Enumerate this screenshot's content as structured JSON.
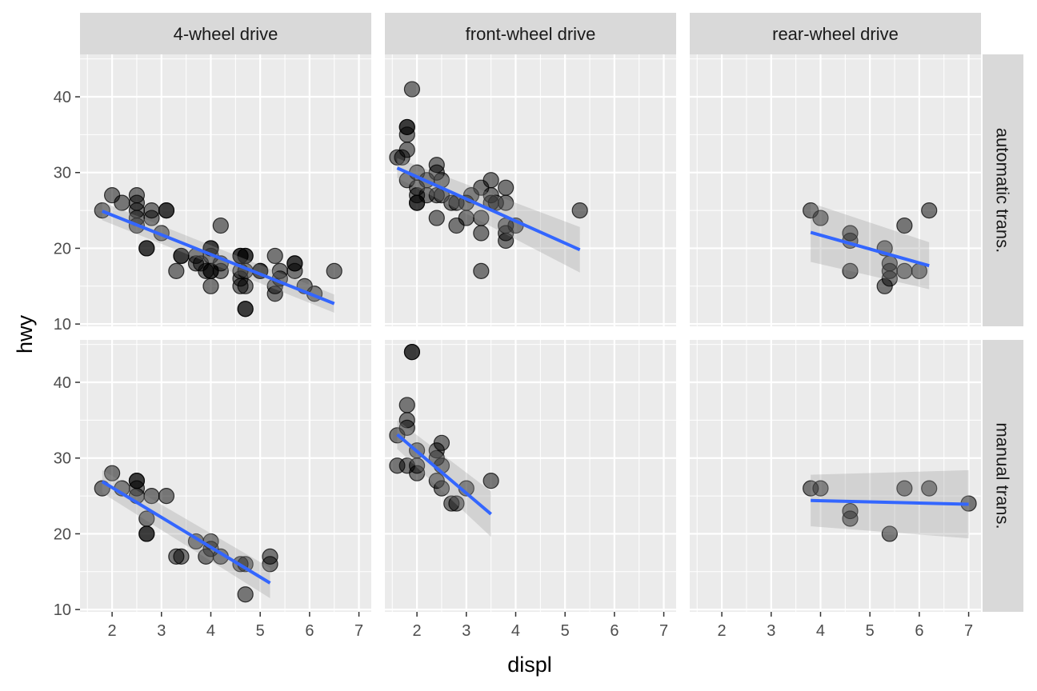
{
  "chart_data": {
    "type": "scatter",
    "title": "",
    "xlabel": "displ",
    "ylabel": "hwy",
    "xlim": [
      1.35,
      7.25
    ],
    "ylim": [
      9.7,
      45.6
    ],
    "x_ticks": [
      2,
      3,
      4,
      5,
      6,
      7
    ],
    "y_ticks": [
      10,
      20,
      30,
      40
    ],
    "col_facets": [
      "4-wheel drive",
      "front-wheel drive",
      "rear-wheel drive"
    ],
    "row_facets": [
      "automatic trans.",
      "manual trans."
    ],
    "smooth": "lm",
    "colors": {
      "panel_bg": "#ebebeb",
      "grid": "#ffffff",
      "strip_bg": "#d9d9d9",
      "point_fill": "#000000",
      "point_alpha": 0.5,
      "smooth_line": "#3366ff",
      "ribbon": "#999999",
      "ribbon_alpha": 0.3
    },
    "panels": [
      {
        "drv": "4-wheel drive",
        "trans": "automatic trans.",
        "fit": {
          "x": [
            1.8,
            6.5
          ],
          "y": [
            24.9,
            12.7
          ],
          "se_low": [
            23.7,
            11.5
          ],
          "se_high": [
            26.1,
            13.9
          ]
        },
        "points": [
          [
            1.8,
            25
          ],
          [
            2.0,
            27
          ],
          [
            2.2,
            26
          ],
          [
            2.5,
            27
          ],
          [
            2.5,
            26
          ],
          [
            2.5,
            25
          ],
          [
            2.5,
            24
          ],
          [
            2.5,
            23
          ],
          [
            2.7,
            20
          ],
          [
            2.7,
            20
          ],
          [
            2.8,
            24
          ],
          [
            2.8,
            25
          ],
          [
            3.0,
            22
          ],
          [
            3.1,
            25
          ],
          [
            3.1,
            25
          ],
          [
            3.3,
            17
          ],
          [
            3.4,
            19
          ],
          [
            3.4,
            19
          ],
          [
            3.7,
            18
          ],
          [
            3.7,
            19
          ],
          [
            3.8,
            18
          ],
          [
            3.9,
            17
          ],
          [
            4.0,
            20
          ],
          [
            4.0,
            20
          ],
          [
            4.0,
            19
          ],
          [
            4.0,
            17
          ],
          [
            4.0,
            17
          ],
          [
            4.0,
            15
          ],
          [
            4.2,
            17
          ],
          [
            4.2,
            18
          ],
          [
            4.2,
            23
          ],
          [
            4.6,
            17
          ],
          [
            4.6,
            19
          ],
          [
            4.6,
            19
          ],
          [
            4.6,
            16
          ],
          [
            4.6,
            15
          ],
          [
            4.7,
            19
          ],
          [
            4.7,
            19
          ],
          [
            4.7,
            17
          ],
          [
            4.7,
            15
          ],
          [
            4.7,
            12
          ],
          [
            4.7,
            12
          ],
          [
            5.0,
            17
          ],
          [
            5.0,
            17
          ],
          [
            5.3,
            19
          ],
          [
            5.3,
            14
          ],
          [
            5.3,
            15
          ],
          [
            5.4,
            16
          ],
          [
            5.4,
            17
          ],
          [
            5.7,
            18
          ],
          [
            5.7,
            18
          ],
          [
            5.7,
            17
          ],
          [
            5.9,
            15
          ],
          [
            6.1,
            14
          ],
          [
            6.5,
            17
          ]
        ]
      },
      {
        "drv": "front-wheel drive",
        "trans": "automatic trans.",
        "fit": {
          "x": [
            1.6,
            5.3
          ],
          "y": [
            30.6,
            19.8
          ],
          "se_low": [
            29.3,
            16.8
          ],
          "se_high": [
            31.9,
            22.8
          ]
        },
        "points": [
          [
            1.6,
            32
          ],
          [
            1.7,
            32
          ],
          [
            1.8,
            36
          ],
          [
            1.8,
            36
          ],
          [
            1.8,
            35
          ],
          [
            1.8,
            33
          ],
          [
            1.8,
            29
          ],
          [
            1.9,
            41
          ],
          [
            2.0,
            30
          ],
          [
            2.0,
            28
          ],
          [
            2.0,
            27
          ],
          [
            2.0,
            26
          ],
          [
            2.0,
            26
          ],
          [
            2.2,
            27
          ],
          [
            2.2,
            29
          ],
          [
            2.4,
            31
          ],
          [
            2.4,
            30
          ],
          [
            2.4,
            27
          ],
          [
            2.4,
            24
          ],
          [
            2.5,
            29
          ],
          [
            2.5,
            27
          ],
          [
            2.7,
            26
          ],
          [
            2.8,
            23
          ],
          [
            2.8,
            26
          ],
          [
            3.0,
            24
          ],
          [
            3.0,
            26
          ],
          [
            3.1,
            27
          ],
          [
            3.3,
            17
          ],
          [
            3.3,
            24
          ],
          [
            3.3,
            22
          ],
          [
            3.3,
            28
          ],
          [
            3.5,
            29
          ],
          [
            3.5,
            26
          ],
          [
            3.5,
            27
          ],
          [
            3.6,
            26
          ],
          [
            3.8,
            28
          ],
          [
            3.8,
            26
          ],
          [
            3.8,
            23
          ],
          [
            3.8,
            21
          ],
          [
            3.8,
            22
          ],
          [
            4.0,
            23
          ],
          [
            5.3,
            25
          ]
        ]
      },
      {
        "drv": "rear-wheel drive",
        "trans": "automatic trans.",
        "fit": {
          "x": [
            3.8,
            6.2
          ],
          "y": [
            22.1,
            17.7
          ],
          "se_low": [
            18.2,
            14.6
          ],
          "se_high": [
            26.0,
            20.8
          ]
        },
        "points": [
          [
            3.8,
            25
          ],
          [
            4.0,
            24
          ],
          [
            4.6,
            22
          ],
          [
            4.6,
            21
          ],
          [
            4.6,
            17
          ],
          [
            5.3,
            20
          ],
          [
            5.3,
            15
          ],
          [
            5.4,
            18
          ],
          [
            5.4,
            17
          ],
          [
            5.4,
            16
          ],
          [
            5.7,
            23
          ],
          [
            5.7,
            17
          ],
          [
            6.0,
            17
          ],
          [
            6.2,
            25
          ]
        ]
      },
      {
        "drv": "4-wheel drive",
        "trans": "manual trans.",
        "fit": {
          "x": [
            1.8,
            5.2
          ],
          "y": [
            26.9,
            13.5
          ],
          "se_low": [
            25.4,
            11.5
          ],
          "se_high": [
            28.4,
            15.5
          ]
        },
        "points": [
          [
            1.8,
            26
          ],
          [
            2.0,
            28
          ],
          [
            2.2,
            26
          ],
          [
            2.5,
            27
          ],
          [
            2.5,
            27
          ],
          [
            2.5,
            26
          ],
          [
            2.5,
            25
          ],
          [
            2.7,
            22
          ],
          [
            2.7,
            20
          ],
          [
            2.7,
            20
          ],
          [
            2.8,
            25
          ],
          [
            3.1,
            25
          ],
          [
            3.3,
            17
          ],
          [
            3.4,
            17
          ],
          [
            3.7,
            19
          ],
          [
            3.9,
            17
          ],
          [
            4.0,
            19
          ],
          [
            4.0,
            18
          ],
          [
            4.2,
            17
          ],
          [
            4.6,
            16
          ],
          [
            4.7,
            16
          ],
          [
            4.7,
            12
          ],
          [
            5.2,
            17
          ],
          [
            5.2,
            16
          ]
        ]
      },
      {
        "drv": "front-wheel drive",
        "trans": "manual trans.",
        "fit": {
          "x": [
            1.6,
            3.5
          ],
          "y": [
            33.1,
            22.6
          ],
          "se_low": [
            31.2,
            19.6
          ],
          "se_high": [
            35.0,
            25.6
          ]
        },
        "points": [
          [
            1.6,
            33
          ],
          [
            1.6,
            29
          ],
          [
            1.8,
            37
          ],
          [
            1.8,
            35
          ],
          [
            1.8,
            34
          ],
          [
            1.8,
            29
          ],
          [
            1.9,
            44
          ],
          [
            1.9,
            44
          ],
          [
            2.0,
            31
          ],
          [
            2.0,
            29
          ],
          [
            2.0,
            28
          ],
          [
            2.4,
            31
          ],
          [
            2.4,
            30
          ],
          [
            2.4,
            27
          ],
          [
            2.5,
            32
          ],
          [
            2.5,
            29
          ],
          [
            2.5,
            26
          ],
          [
            2.7,
            24
          ],
          [
            2.8,
            24
          ],
          [
            3.0,
            26
          ],
          [
            3.5,
            27
          ]
        ]
      },
      {
        "drv": "rear-wheel drive",
        "trans": "manual trans.",
        "fit": {
          "x": [
            3.8,
            7.0
          ],
          "y": [
            24.4,
            23.9
          ],
          "se_low": [
            21.0,
            19.4
          ],
          "se_high": [
            27.8,
            28.4
          ]
        },
        "points": [
          [
            3.8,
            26
          ],
          [
            4.0,
            26
          ],
          [
            4.6,
            23
          ],
          [
            4.6,
            22
          ],
          [
            5.4,
            20
          ],
          [
            5.7,
            26
          ],
          [
            6.2,
            26
          ],
          [
            7.0,
            24
          ]
        ]
      }
    ]
  }
}
